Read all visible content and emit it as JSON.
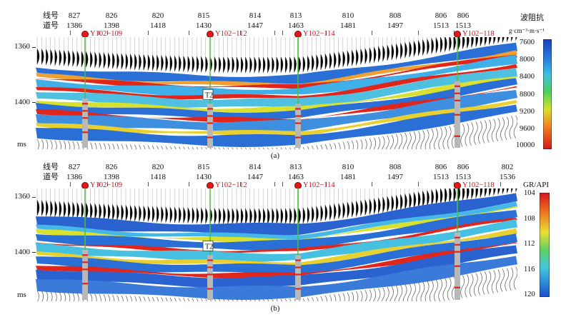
{
  "panel_a": {
    "row_labels": [
      "线号",
      "道号"
    ],
    "lines": [
      {
        "line": "827",
        "trace": "1386"
      },
      {
        "line": "826",
        "trace": "1398"
      },
      {
        "line": "820",
        "trace": "1418"
      },
      {
        "line": "815",
        "trace": "1430"
      },
      {
        "line": "814",
        "trace": "1447"
      },
      {
        "line": "813",
        "trace": "1463"
      },
      {
        "line": "810",
        "trace": "1481"
      },
      {
        "line": "808",
        "trace": "1497"
      },
      {
        "line": "806",
        "trace": "1513"
      },
      {
        "line": "806",
        "trace": "1513"
      }
    ],
    "wells": [
      "Y102−109",
      "Y102−112",
      "Y102−114",
      "Y102−118"
    ],
    "horizon_label": "T2",
    "y_ticks": [
      "1360",
      "1400"
    ],
    "y_unit": "ms",
    "colorbar_title": "波阻抗",
    "colorbar_unit": "g·cm⁻³·m·s⁻¹",
    "colorbar_ticks": [
      "7600",
      "8000",
      "8400",
      "8800",
      "9200",
      "9600",
      "10000"
    ],
    "caption": "(a)"
  },
  "panel_b": {
    "row_labels": [
      "线号",
      "道号"
    ],
    "lines": [
      {
        "line": "827",
        "trace": "1386"
      },
      {
        "line": "826",
        "trace": "1398"
      },
      {
        "line": "820",
        "trace": "1418"
      },
      {
        "line": "815",
        "trace": "1430"
      },
      {
        "line": "814",
        "trace": "1447"
      },
      {
        "line": "813",
        "trace": "1463"
      },
      {
        "line": "810",
        "trace": "1481"
      },
      {
        "line": "808",
        "trace": "1497"
      },
      {
        "line": "806",
        "trace": "1513"
      },
      {
        "line": "806",
        "trace": "1513"
      },
      {
        "line": "802",
        "trace": "1536"
      }
    ],
    "wells": [
      "Y102−109",
      "Y102−112",
      "Y102−114",
      "Y102−118"
    ],
    "horizon_label": "T2",
    "y_ticks": [
      "1360",
      "1400"
    ],
    "y_unit": "ms",
    "colorbar_title": "GR/API",
    "colorbar_ticks": [
      "104",
      "108",
      "112",
      "116",
      "120"
    ],
    "caption": "(b)"
  },
  "colors": {
    "well_marker": "#e01a1a",
    "well_label": "#d1121a",
    "well_track": "#4cbf3a",
    "section_top_wiggle": "#000000",
    "hot": "#e0261c",
    "cold": "#2a6fd6"
  }
}
